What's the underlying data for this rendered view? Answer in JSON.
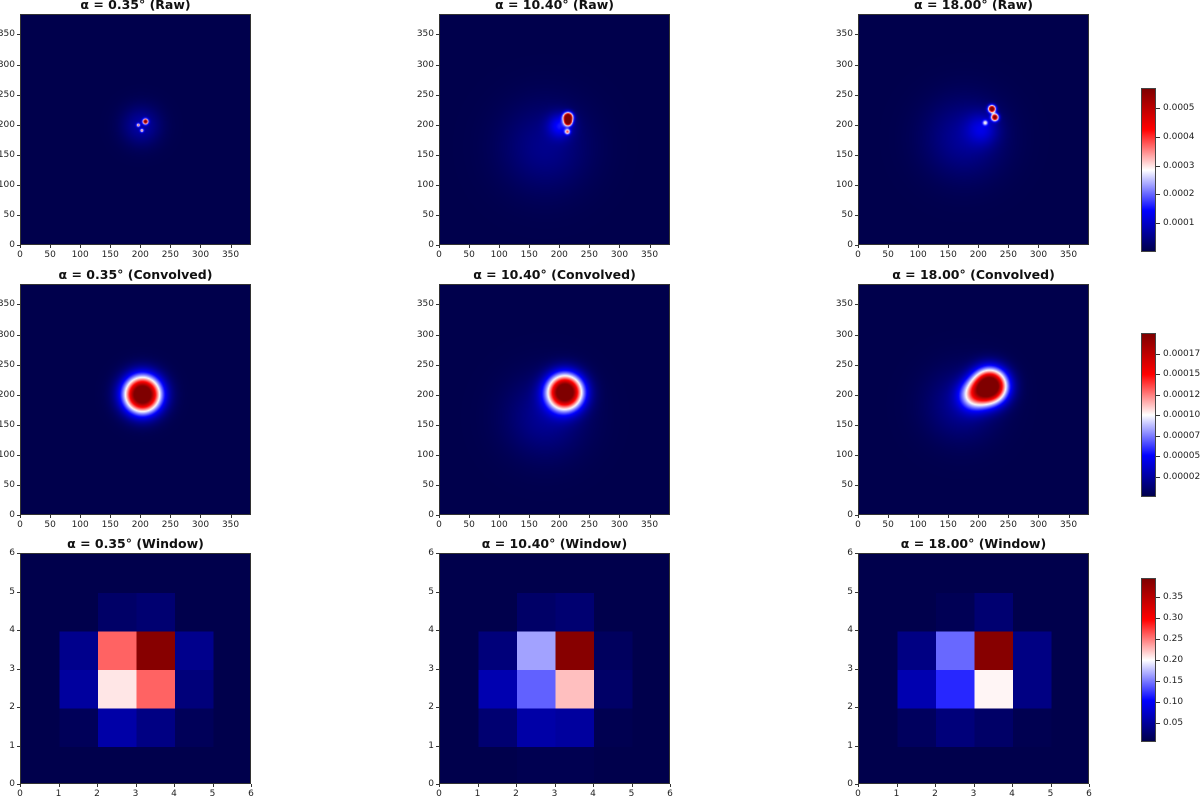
{
  "colormap": "seismic",
  "chart_data": [
    {
      "type": "heatmap",
      "title": "α = 0.35°  (Raw)",
      "row": 0,
      "col": 0,
      "xlim": [
        0,
        384
      ],
      "ylim": [
        0,
        384
      ],
      "xticks": [
        "0",
        "50",
        "100",
        "150",
        "200",
        "250",
        "300",
        "350"
      ],
      "yticks": [
        "0",
        "50",
        "100",
        "150",
        "200",
        "250",
        "300",
        "350"
      ],
      "clim": [
        0,
        0.00057
      ],
      "blobs": [
        {
          "x": 207,
          "y": 207,
          "sigma": 3,
          "amp": 0.0006
        },
        {
          "x": 195,
          "y": 201,
          "sigma": 2,
          "amp": 0.00032
        },
        {
          "x": 201,
          "y": 192,
          "sigma": 2,
          "amp": 0.0003
        },
        {
          "x": 200,
          "y": 200,
          "sigma": 22,
          "amp": 7e-05
        }
      ]
    },
    {
      "type": "heatmap",
      "title": "α = 10.40°  (Raw)",
      "row": 0,
      "col": 1,
      "xlim": [
        0,
        384
      ],
      "ylim": [
        0,
        384
      ],
      "xticks": [
        "0",
        "50",
        "100",
        "150",
        "200",
        "250",
        "300",
        "350"
      ],
      "yticks": [
        "0",
        "50",
        "100",
        "150",
        "200",
        "250",
        "300",
        "350"
      ],
      "clim": [
        0,
        0.00057
      ],
      "blobs": [
        {
          "x": 213,
          "y": 214,
          "sigma": 5,
          "amp": 0.0008
        },
        {
          "x": 213,
          "y": 206,
          "sigma": 4,
          "amp": 0.0006
        },
        {
          "x": 212,
          "y": 190,
          "sigma": 3,
          "amp": 0.0003
        },
        {
          "x": 200,
          "y": 200,
          "sigma": 14,
          "amp": 0.00012
        },
        {
          "x": 175,
          "y": 165,
          "sigma": 50,
          "amp": 5e-05
        }
      ]
    },
    {
      "type": "heatmap",
      "title": "α = 18.00°  (Raw)",
      "row": 0,
      "col": 2,
      "xlim": [
        0,
        384
      ],
      "ylim": [
        0,
        384
      ],
      "xticks": [
        "0",
        "50",
        "100",
        "150",
        "200",
        "250",
        "300",
        "350"
      ],
      "yticks": [
        "0",
        "50",
        "100",
        "150",
        "200",
        "250",
        "300",
        "350"
      ],
      "clim": [
        0,
        0.00057
      ],
      "blobs": [
        {
          "x": 221,
          "y": 228,
          "sigma": 4,
          "amp": 0.0007
        },
        {
          "x": 226,
          "y": 214,
          "sigma": 4,
          "amp": 0.0006
        },
        {
          "x": 210,
          "y": 205,
          "sigma": 3,
          "amp": 0.0002
        },
        {
          "x": 205,
          "y": 195,
          "sigma": 18,
          "amp": 8e-05
        },
        {
          "x": 175,
          "y": 180,
          "sigma": 45,
          "amp": 6e-05
        }
      ]
    },
    {
      "type": "heatmap",
      "title": "α = 0.35°  (Convolved)",
      "row": 1,
      "col": 0,
      "xlim": [
        0,
        384
      ],
      "ylim": [
        0,
        384
      ],
      "xticks": [
        "0",
        "50",
        "100",
        "150",
        "200",
        "250",
        "300",
        "350"
      ],
      "yticks": [
        "0",
        "50",
        "100",
        "150",
        "200",
        "250",
        "300",
        "350"
      ],
      "clim": [
        0,
        0.0002
      ],
      "blobs": [
        {
          "x": 202,
          "y": 202,
          "sigma": 21,
          "amp": 0.00025
        }
      ]
    },
    {
      "type": "heatmap",
      "title": "α = 10.40°  (Convolved)",
      "row": 1,
      "col": 1,
      "xlim": [
        0,
        384
      ],
      "ylim": [
        0,
        384
      ],
      "xticks": [
        "0",
        "50",
        "100",
        "150",
        "200",
        "250",
        "300",
        "350"
      ],
      "yticks": [
        "0",
        "50",
        "100",
        "150",
        "200",
        "250",
        "300",
        "350"
      ],
      "clim": [
        0,
        0.0002
      ],
      "blobs": [
        {
          "x": 208,
          "y": 206,
          "sigma": 20,
          "amp": 0.00024
        },
        {
          "x": 175,
          "y": 165,
          "sigma": 45,
          "amp": 2e-05
        }
      ]
    },
    {
      "type": "heatmap",
      "title": "α = 18.00°  (Convolved)",
      "row": 1,
      "col": 2,
      "xlim": [
        0,
        384
      ],
      "ylim": [
        0,
        384
      ],
      "xticks": [
        "0",
        "50",
        "100",
        "150",
        "200",
        "250",
        "300",
        "350"
      ],
      "yticks": [
        "0",
        "50",
        "100",
        "150",
        "200",
        "250",
        "300",
        "350"
      ],
      "clim": [
        0,
        0.0002
      ],
      "blobs": [
        {
          "x": 218,
          "y": 216,
          "sigma": 19,
          "amp": 0.00025
        },
        {
          "x": 190,
          "y": 200,
          "sigma": 17,
          "amp": 8e-05
        },
        {
          "x": 170,
          "y": 185,
          "sigma": 40,
          "amp": 2e-05
        }
      ]
    },
    {
      "type": "heatmap",
      "title": "α = 0.35°  (Window)",
      "row": 2,
      "col": 0,
      "xlim": [
        0,
        6
      ],
      "ylim": [
        0,
        6
      ],
      "xticks": [
        "0",
        "1",
        "2",
        "3",
        "4",
        "5",
        "6"
      ],
      "yticks": [
        "0",
        "1",
        "2",
        "3",
        "4",
        "5",
        "6"
      ],
      "clim": [
        0.005,
        0.396
      ],
      "values": [
        [
          0.005,
          0.005,
          0.005,
          0.005,
          0.005,
          0.005
        ],
        [
          0.005,
          0.012,
          0.055,
          0.035,
          0.012,
          0.005
        ],
        [
          0.005,
          0.05,
          0.21,
          0.26,
          0.03,
          0.005
        ],
        [
          0.005,
          0.04,
          0.26,
          0.39,
          0.04,
          0.005
        ],
        [
          0.005,
          0.005,
          0.02,
          0.025,
          0.005,
          0.005
        ],
        [
          0.005,
          0.005,
          0.005,
          0.005,
          0.005,
          0.005
        ]
      ]
    },
    {
      "type": "heatmap",
      "title": "α = 10.40°  (Window)",
      "row": 2,
      "col": 1,
      "xlim": [
        0,
        6
      ],
      "ylim": [
        0,
        6
      ],
      "xticks": [
        "0",
        "1",
        "2",
        "3",
        "4",
        "5",
        "6"
      ],
      "yticks": [
        "0",
        "1",
        "2",
        "3",
        "4",
        "5",
        "6"
      ],
      "clim": [
        0.005,
        0.396
      ],
      "values": [
        [
          0.005,
          0.005,
          0.008,
          0.008,
          0.005,
          0.005
        ],
        [
          0.005,
          0.025,
          0.055,
          0.05,
          0.008,
          0.005
        ],
        [
          0.005,
          0.06,
          0.14,
          0.225,
          0.02,
          0.005
        ],
        [
          0.005,
          0.03,
          0.165,
          0.39,
          0.015,
          0.005
        ],
        [
          0.005,
          0.005,
          0.02,
          0.025,
          0.005,
          0.005
        ],
        [
          0.005,
          0.005,
          0.005,
          0.005,
          0.005,
          0.005
        ]
      ]
    },
    {
      "type": "heatmap",
      "title": "α = 18.00°  (Window)",
      "row": 2,
      "col": 2,
      "xlim": [
        0,
        6
      ],
      "ylim": [
        0,
        6
      ],
      "xticks": [
        "0",
        "1",
        "2",
        "3",
        "4",
        "5",
        "6"
      ],
      "yticks": [
        "0",
        "1",
        "2",
        "3",
        "4",
        "5",
        "6"
      ],
      "clim": [
        0.005,
        0.396
      ],
      "values": [
        [
          0.005,
          0.005,
          0.005,
          0.005,
          0.005,
          0.005
        ],
        [
          0.005,
          0.015,
          0.03,
          0.02,
          0.008,
          0.005
        ],
        [
          0.005,
          0.06,
          0.118,
          0.204,
          0.035,
          0.005
        ],
        [
          0.005,
          0.035,
          0.143,
          0.39,
          0.035,
          0.005
        ],
        [
          0.005,
          0.005,
          0.01,
          0.025,
          0.005,
          0.005
        ],
        [
          0.005,
          0.005,
          0.005,
          0.005,
          0.005,
          0.005
        ]
      ]
    }
  ],
  "colorbars": [
    {
      "clim": [
        0,
        0.00057
      ],
      "ticks": [
        {
          "v": 0.0001,
          "label": "0.0001"
        },
        {
          "v": 0.0002,
          "label": "0.0002"
        },
        {
          "v": 0.0003,
          "label": "0.0003"
        },
        {
          "v": 0.0004,
          "label": "0.0004"
        },
        {
          "v": 0.0005,
          "label": "0.0005"
        }
      ]
    },
    {
      "clim": [
        0,
        0.0002
      ],
      "ticks": [
        {
          "v": 2.5e-05,
          "label": "0.000025"
        },
        {
          "v": 5e-05,
          "label": "0.000050"
        },
        {
          "v": 7.5e-05,
          "label": "0.000075"
        },
        {
          "v": 0.0001,
          "label": "0.000100"
        },
        {
          "v": 0.000125,
          "label": "0.000125"
        },
        {
          "v": 0.00015,
          "label": "0.000150"
        },
        {
          "v": 0.000175,
          "label": "0.000175"
        }
      ]
    },
    {
      "clim": [
        0.005,
        0.396
      ],
      "ticks": [
        {
          "v": 0.05,
          "label": "0.05"
        },
        {
          "v": 0.1,
          "label": "0.10"
        },
        {
          "v": 0.15,
          "label": "0.15"
        },
        {
          "v": 0.2,
          "label": "0.20"
        },
        {
          "v": 0.25,
          "label": "0.25"
        },
        {
          "v": 0.3,
          "label": "0.30"
        },
        {
          "v": 0.35,
          "label": "0.35"
        }
      ]
    }
  ]
}
